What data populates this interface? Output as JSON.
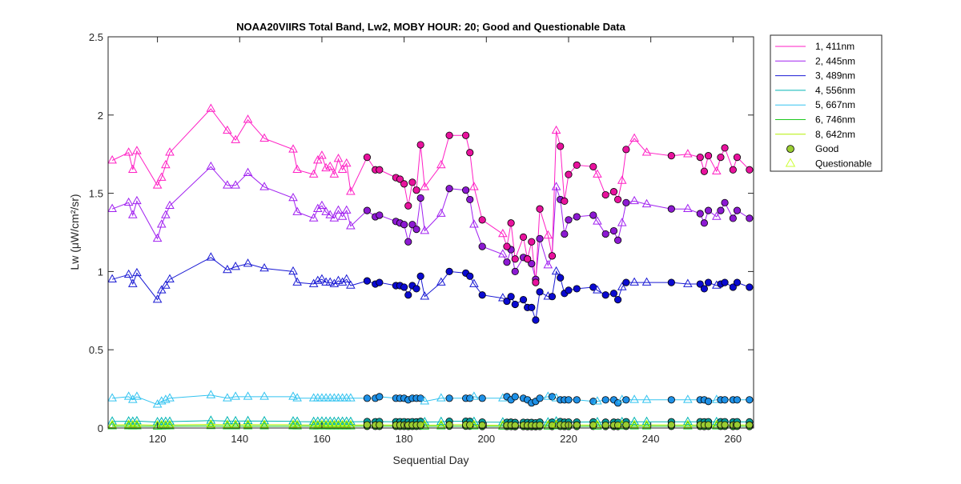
{
  "chart_data": {
    "type": "line",
    "title": "NOAA20VIIRS Total Band,  Lw2, MOBY HOUR: 20;  Good and Questionable Data",
    "xlabel": "Sequential Day",
    "ylabel": "Lw (μW/cm²/sr)",
    "xlim": [
      108,
      265
    ],
    "ylim": [
      0,
      2.5
    ],
    "xticks": [
      120,
      140,
      160,
      180,
      200,
      220,
      240,
      260
    ],
    "xtick_labels": [
      "120",
      "140",
      "160",
      "180",
      "200",
      "220",
      "240",
      "260"
    ],
    "yticks": [
      0,
      0.5,
      1,
      1.5,
      2,
      2.5
    ],
    "ytick_labels": [
      "0",
      "0.5",
      "1",
      "1.5",
      "2",
      "2.5"
    ],
    "grid": false,
    "legend": {
      "placement": "outside-right-top",
      "marker_entries": [
        {
          "label": "Good",
          "marker": "circle",
          "face": "#9acd32",
          "edge": "#000000"
        },
        {
          "label": "Questionable",
          "marker": "triangle",
          "face": "none",
          "edge": "#ccff33"
        }
      ]
    },
    "x": [
      109,
      113,
      114,
      115,
      120,
      121,
      122,
      123,
      133,
      137,
      139,
      142,
      146,
      153,
      154,
      158,
      159,
      160,
      161,
      162,
      163,
      164,
      165,
      166,
      167,
      171,
      173,
      174,
      178,
      179,
      180,
      181,
      182,
      183,
      184,
      185,
      189,
      191,
      195,
      196,
      197,
      199,
      204,
      205,
      206,
      207,
      209,
      210,
      211,
      212,
      213,
      215,
      216,
      217,
      218,
      219,
      220,
      222,
      226,
      227,
      229,
      231,
      232,
      233,
      234,
      236,
      239,
      245,
      249,
      252,
      253,
      254,
      256,
      257,
      258,
      260,
      261,
      264
    ],
    "questionable": [
      true,
      true,
      true,
      true,
      true,
      true,
      true,
      true,
      true,
      true,
      true,
      true,
      true,
      true,
      true,
      true,
      true,
      true,
      true,
      true,
      true,
      true,
      true,
      true,
      true,
      false,
      false,
      false,
      false,
      false,
      false,
      false,
      false,
      false,
      false,
      true,
      true,
      false,
      false,
      false,
      true,
      false,
      true,
      false,
      false,
      false,
      false,
      false,
      false,
      false,
      false,
      true,
      false,
      true,
      false,
      false,
      false,
      false,
      false,
      true,
      false,
      false,
      false,
      true,
      false,
      true,
      true,
      false,
      true,
      false,
      false,
      false,
      true,
      false,
      false,
      false,
      false,
      false
    ],
    "series": [
      {
        "name": "1, 411nm",
        "color": "#ff1fc4",
        "marker_color": "#e8129d",
        "values": [
          1.71,
          1.76,
          1.65,
          1.77,
          1.55,
          1.6,
          1.68,
          1.76,
          2.04,
          1.9,
          1.84,
          1.97,
          1.85,
          1.78,
          1.65,
          1.62,
          1.71,
          1.74,
          1.66,
          1.67,
          1.62,
          1.72,
          1.65,
          1.69,
          1.51,
          1.73,
          1.65,
          1.65,
          1.6,
          1.59,
          1.56,
          1.42,
          1.57,
          1.52,
          1.81,
          1.54,
          1.68,
          1.87,
          1.87,
          1.76,
          1.54,
          1.33,
          1.24,
          1.16,
          1.31,
          1.08,
          1.22,
          1.08,
          1.19,
          0.93,
          1.4,
          1.23,
          1.1,
          1.9,
          1.8,
          1.45,
          1.62,
          1.68,
          1.67,
          1.62,
          1.49,
          1.51,
          1.46,
          1.58,
          1.78,
          1.85,
          1.76,
          1.74,
          1.75,
          1.73,
          1.64,
          1.74,
          1.64,
          1.73,
          1.79,
          1.65,
          1.73,
          1.65
        ]
      },
      {
        "name": "2, 445nm",
        "color": "#a020f0",
        "marker_color": "#8c19d2",
        "values": [
          1.4,
          1.44,
          1.36,
          1.45,
          1.21,
          1.3,
          1.36,
          1.42,
          1.67,
          1.55,
          1.55,
          1.63,
          1.54,
          1.47,
          1.38,
          1.34,
          1.4,
          1.42,
          1.38,
          1.36,
          1.34,
          1.39,
          1.35,
          1.39,
          1.29,
          1.39,
          1.35,
          1.36,
          1.32,
          1.31,
          1.3,
          1.19,
          1.3,
          1.27,
          1.47,
          1.26,
          1.37,
          1.53,
          1.52,
          1.46,
          1.3,
          1.16,
          1.11,
          1.06,
          1.14,
          1.0,
          1.09,
          1.08,
          1.05,
          0.95,
          1.21,
          1.04,
          1.1,
          1.54,
          1.46,
          1.24,
          1.33,
          1.35,
          1.36,
          1.32,
          1.24,
          1.26,
          1.2,
          1.31,
          1.44,
          1.45,
          1.43,
          1.4,
          1.4,
          1.37,
          1.31,
          1.39,
          1.35,
          1.39,
          1.44,
          1.34,
          1.39,
          1.34
        ]
      },
      {
        "name": "3, 489nm",
        "color": "#1a1ad4",
        "marker_color": "#0a0ad0",
        "values": [
          0.95,
          0.98,
          0.92,
          0.99,
          0.82,
          0.88,
          0.91,
          0.95,
          1.09,
          1.01,
          1.03,
          1.05,
          1.02,
          1.0,
          0.93,
          0.92,
          0.94,
          0.95,
          0.93,
          0.93,
          0.92,
          0.94,
          0.93,
          0.95,
          0.91,
          0.94,
          0.92,
          0.93,
          0.91,
          0.91,
          0.9,
          0.85,
          0.91,
          0.89,
          0.97,
          0.84,
          0.93,
          1.0,
          0.99,
          0.97,
          0.92,
          0.85,
          0.83,
          0.81,
          0.84,
          0.79,
          0.82,
          0.77,
          0.77,
          0.69,
          0.87,
          0.84,
          0.84,
          1.0,
          0.96,
          0.86,
          0.88,
          0.89,
          0.9,
          0.88,
          0.85,
          0.86,
          0.82,
          0.9,
          0.93,
          0.93,
          0.93,
          0.93,
          0.92,
          0.92,
          0.89,
          0.93,
          0.91,
          0.92,
          0.93,
          0.9,
          0.93,
          0.9
        ]
      },
      {
        "name": "4, 556nm",
        "color": "#00b4b4",
        "marker_color": "#009c9c",
        "values": [
          0.042,
          0.043,
          0.041,
          0.044,
          0.038,
          0.039,
          0.04,
          0.041,
          0.047,
          0.044,
          0.044,
          0.045,
          0.044,
          0.043,
          0.041,
          0.04,
          0.041,
          0.042,
          0.041,
          0.041,
          0.04,
          0.041,
          0.041,
          0.041,
          0.04,
          0.041,
          0.04,
          0.041,
          0.04,
          0.04,
          0.04,
          0.038,
          0.04,
          0.039,
          0.042,
          0.038,
          0.04,
          0.043,
          0.043,
          0.042,
          0.04,
          0.038,
          0.037,
          0.036,
          0.037,
          0.035,
          0.036,
          0.035,
          0.035,
          0.033,
          0.038,
          0.037,
          0.037,
          0.043,
          0.041,
          0.037,
          0.038,
          0.038,
          0.039,
          0.038,
          0.037,
          0.037,
          0.036,
          0.039,
          0.04,
          0.04,
          0.04,
          0.04,
          0.04,
          0.04,
          0.039,
          0.04,
          0.039,
          0.04,
          0.04,
          0.039,
          0.04,
          0.039
        ]
      },
      {
        "name": "5, 667nm",
        "color": "#33c3f0",
        "marker_color": "#1e90e6",
        "values": [
          0.19,
          0.2,
          0.18,
          0.2,
          0.15,
          0.17,
          0.18,
          0.19,
          0.21,
          0.19,
          0.2,
          0.2,
          0.2,
          0.2,
          0.19,
          0.19,
          0.19,
          0.19,
          0.19,
          0.19,
          0.19,
          0.19,
          0.19,
          0.19,
          0.19,
          0.19,
          0.19,
          0.2,
          0.19,
          0.19,
          0.19,
          0.18,
          0.19,
          0.19,
          0.19,
          0.17,
          0.19,
          0.19,
          0.19,
          0.19,
          0.2,
          0.19,
          0.19,
          0.2,
          0.18,
          0.2,
          0.19,
          0.18,
          0.16,
          0.17,
          0.19,
          0.2,
          0.2,
          0.19,
          0.18,
          0.18,
          0.18,
          0.18,
          0.17,
          0.17,
          0.18,
          0.18,
          0.16,
          0.18,
          0.18,
          0.18,
          0.18,
          0.18,
          0.18,
          0.18,
          0.18,
          0.17,
          0.18,
          0.18,
          0.18,
          0.18,
          0.18,
          0.18
        ]
      },
      {
        "name": "6, 746nm",
        "color": "#1ec81e",
        "marker_color": "#22bb22",
        "values": [
          0.012,
          0.012,
          0.011,
          0.012,
          0.01,
          0.011,
          0.011,
          0.012,
          0.013,
          0.012,
          0.012,
          0.012,
          0.012,
          0.012,
          0.011,
          0.011,
          0.011,
          0.012,
          0.011,
          0.011,
          0.011,
          0.011,
          0.011,
          0.011,
          0.011,
          0.011,
          0.011,
          0.011,
          0.011,
          0.011,
          0.011,
          0.01,
          0.011,
          0.011,
          0.012,
          0.01,
          0.011,
          0.012,
          0.012,
          0.012,
          0.011,
          0.01,
          0.01,
          0.01,
          0.01,
          0.009,
          0.01,
          0.009,
          0.009,
          0.009,
          0.01,
          0.01,
          0.01,
          0.012,
          0.011,
          0.01,
          0.01,
          0.01,
          0.011,
          0.01,
          0.01,
          0.01,
          0.01,
          0.011,
          0.011,
          0.011,
          0.011,
          0.011,
          0.011,
          0.011,
          0.01,
          0.011,
          0.011,
          0.011,
          0.011,
          0.01,
          0.011,
          0.01
        ]
      },
      {
        "name": "8, 642nm",
        "color": "#b4f000",
        "marker_color": "#9acd32",
        "values": [
          0.02,
          0.021,
          0.019,
          0.021,
          0.018,
          0.019,
          0.019,
          0.02,
          0.023,
          0.021,
          0.021,
          0.022,
          0.021,
          0.021,
          0.02,
          0.02,
          0.02,
          0.02,
          0.02,
          0.02,
          0.02,
          0.02,
          0.02,
          0.02,
          0.019,
          0.02,
          0.019,
          0.02,
          0.019,
          0.019,
          0.019,
          0.018,
          0.019,
          0.019,
          0.02,
          0.018,
          0.019,
          0.021,
          0.021,
          0.02,
          0.019,
          0.018,
          0.018,
          0.017,
          0.018,
          0.017,
          0.018,
          0.017,
          0.017,
          0.016,
          0.018,
          0.018,
          0.018,
          0.021,
          0.02,
          0.018,
          0.019,
          0.019,
          0.019,
          0.019,
          0.018,
          0.018,
          0.018,
          0.019,
          0.02,
          0.02,
          0.02,
          0.02,
          0.02,
          0.02,
          0.019,
          0.02,
          0.019,
          0.02,
          0.02,
          0.019,
          0.02,
          0.019
        ]
      }
    ]
  }
}
